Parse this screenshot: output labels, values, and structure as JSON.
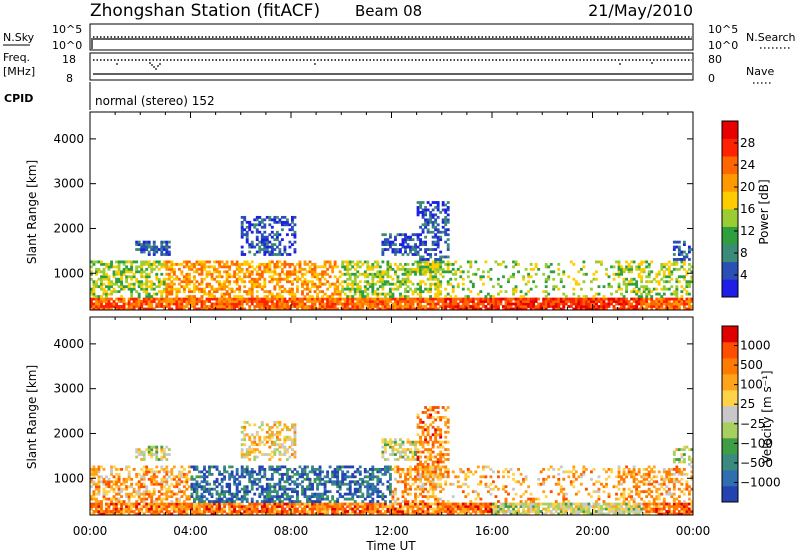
{
  "header": {
    "station": "Zhongshan Station (fitACF)",
    "beam": "Beam 08",
    "date": "21/May/2010"
  },
  "colors": {
    "power_scale": [
      "#1e1ee6",
      "#2a4fb5",
      "#3c8a78",
      "#2e9e3e",
      "#9acd32",
      "#ffcc00",
      "#ff9900",
      "#ff6600",
      "#ff2200",
      "#e60000"
    ],
    "velocity_scale": [
      "#2442b0",
      "#2f6fb0",
      "#3a8a80",
      "#3f9e45",
      "#a8d060",
      "#c8c8c8",
      "#ffd24a",
      "#ffa31a",
      "#ff7a00",
      "#ff4d00",
      "#e00000"
    ]
  },
  "chart_data": [
    {
      "type": "line",
      "panel": "N.Sky / N.Search",
      "left_label": "N.Sky",
      "right_label": "N.Search",
      "left_ticks": [
        "10^5",
        "10^0"
      ],
      "right_ticks": [
        "10^5",
        "10^0"
      ]
    },
    {
      "type": "line",
      "panel": "Freq / Nave",
      "left_label_1": "Freq.",
      "left_label_2": "[MHz]",
      "right_label": "Nave",
      "left_ticks": [
        18,
        8
      ],
      "right_ticks": [
        80,
        0
      ]
    },
    {
      "type": "text",
      "panel": "CPID",
      "label": "CPID",
      "value": "normal (stereo) 152"
    },
    {
      "type": "heatmap",
      "panel": "power",
      "ylabel": "Slant Range [km]",
      "xlabel": "",
      "ylim": [
        180,
        4600
      ],
      "xlim": [
        0,
        24
      ],
      "y_ticks": [
        1000,
        2000,
        3000,
        4000
      ],
      "colorbar_label": "Power [dB]",
      "colorbar_ticks": [
        "4",
        "8",
        "12",
        "16",
        "20",
        "24",
        "28"
      ],
      "colorbar_range": [
        0,
        32
      ]
    },
    {
      "type": "heatmap",
      "panel": "velocity",
      "ylabel": "Slant Range [km]",
      "xlabel": "Time UT",
      "ylim": [
        180,
        4600
      ],
      "xlim": [
        0,
        24
      ],
      "y_ticks": [
        1000,
        2000,
        3000,
        4000
      ],
      "x_ticks": [
        "00:00",
        "04:00",
        "08:00",
        "12:00",
        "16:00",
        "20:00",
        "00:00"
      ],
      "colorbar_label": "Velocity [m s⁻¹]",
      "colorbar_ticks": [
        "1000",
        "500",
        "100",
        "25",
        "−25",
        "−100",
        "−500",
        "−1000"
      ]
    }
  ]
}
